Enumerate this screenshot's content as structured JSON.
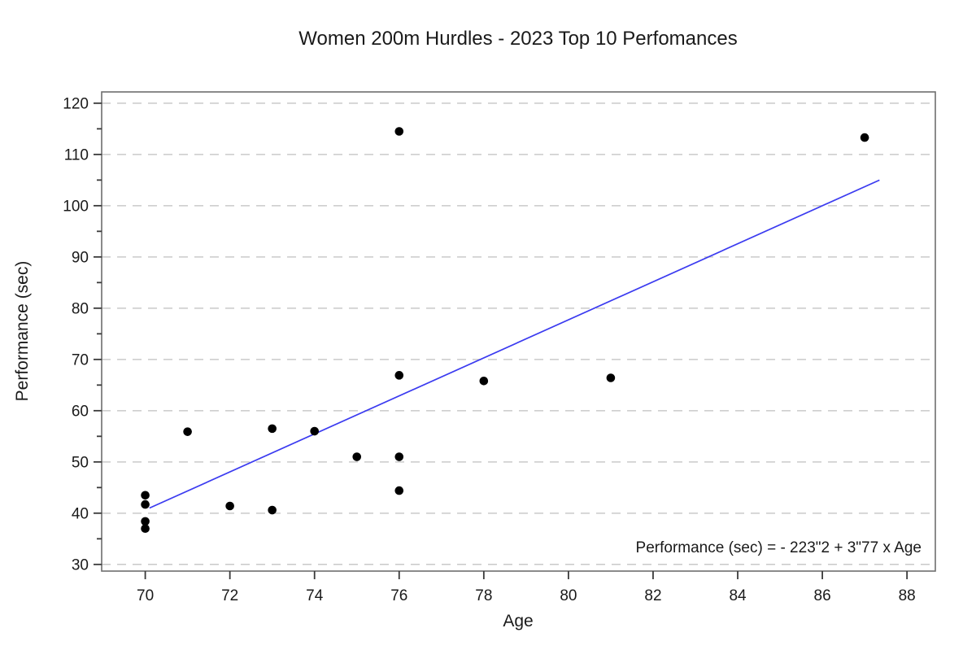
{
  "title": "Women 200m Hurdles - 2023 Top 10 Perfomances",
  "chart_data": {
    "type": "scatter",
    "title": "Women 200m Hurdles - 2023 Top 10 Perfomances",
    "xlabel": "Age",
    "ylabel": "Performance (sec)",
    "annotation": "Performance (sec) =  - 223\"2 + 3\"77 x Age",
    "xlim": [
      68.97,
      88.67
    ],
    "ylim": [
      28.7,
      122.2
    ],
    "x_ticks": [
      70,
      72,
      74,
      76,
      78,
      80,
      82,
      84,
      86,
      88
    ],
    "y_ticks": [
      30,
      40,
      50,
      60,
      70,
      80,
      90,
      100,
      110,
      120
    ],
    "y_minor_ticks": [
      35,
      45,
      55,
      65,
      75,
      85,
      95,
      105,
      115
    ],
    "grid": "horizontal-dashed-major-y",
    "legend": "none",
    "points": [
      {
        "x": 70,
        "y": 43.5
      },
      {
        "x": 70,
        "y": 41.7
      },
      {
        "x": 70,
        "y": 38.4
      },
      {
        "x": 70,
        "y": 37.0
      },
      {
        "x": 71,
        "y": 55.9
      },
      {
        "x": 72,
        "y": 41.4
      },
      {
        "x": 73,
        "y": 56.5
      },
      {
        "x": 73,
        "y": 40.6
      },
      {
        "x": 74,
        "y": 56.0
      },
      {
        "x": 75,
        "y": 51.0
      },
      {
        "x": 76,
        "y": 114.5
      },
      {
        "x": 76,
        "y": 66.9
      },
      {
        "x": 76,
        "y": 51.0
      },
      {
        "x": 76,
        "y": 44.4
      },
      {
        "x": 78,
        "y": 65.8
      },
      {
        "x": 81,
        "y": 66.4
      },
      {
        "x": 87,
        "y": 113.3
      }
    ],
    "fit_line": {
      "x1": 70.1,
      "y1": 41.0,
      "x2": 87.35,
      "y2": 105.0,
      "slope_label": "3\"77",
      "intercept_label": "- 223\"2"
    },
    "colors": {
      "point": "#000000",
      "fit_line": "#3B3BF0",
      "grid": "#C9C9C9",
      "plot_border": "#6E6E6E",
      "tick": "#3A3A3A",
      "text": "#1A1A1A",
      "background": "#FFFFFF"
    }
  }
}
